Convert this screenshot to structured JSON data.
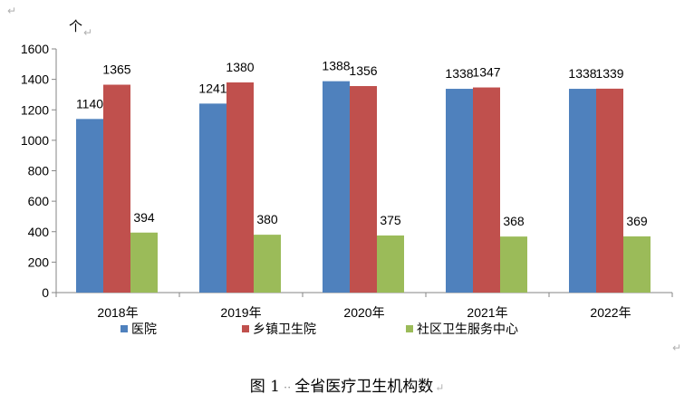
{
  "chart_data": {
    "type": "bar",
    "unit_label": "个",
    "categories": [
      "2018年",
      "2019年",
      "2020年",
      "2021年",
      "2022年"
    ],
    "series": [
      {
        "name": "医院",
        "color": "#4f81bd",
        "values": [
          1140,
          1241,
          1388,
          1338,
          1338
        ]
      },
      {
        "name": "乡镇卫生院",
        "color": "#c0504d",
        "values": [
          1365,
          1380,
          1356,
          1347,
          1339
        ]
      },
      {
        "name": "社区卫生服务中心",
        "color": "#9bbb59",
        "values": [
          394,
          380,
          375,
          368,
          369
        ]
      }
    ],
    "ylim": [
      0,
      1600
    ],
    "yticks": [
      0,
      200,
      400,
      600,
      800,
      1000,
      1200,
      1400,
      1600
    ],
    "grid": false,
    "legend_position": "bottom",
    "data_labels": true
  },
  "caption": {
    "figure_number": "图 1",
    "separator": "··",
    "title": "全省医疗卫生机构数"
  },
  "paragraph_mark": "↵"
}
